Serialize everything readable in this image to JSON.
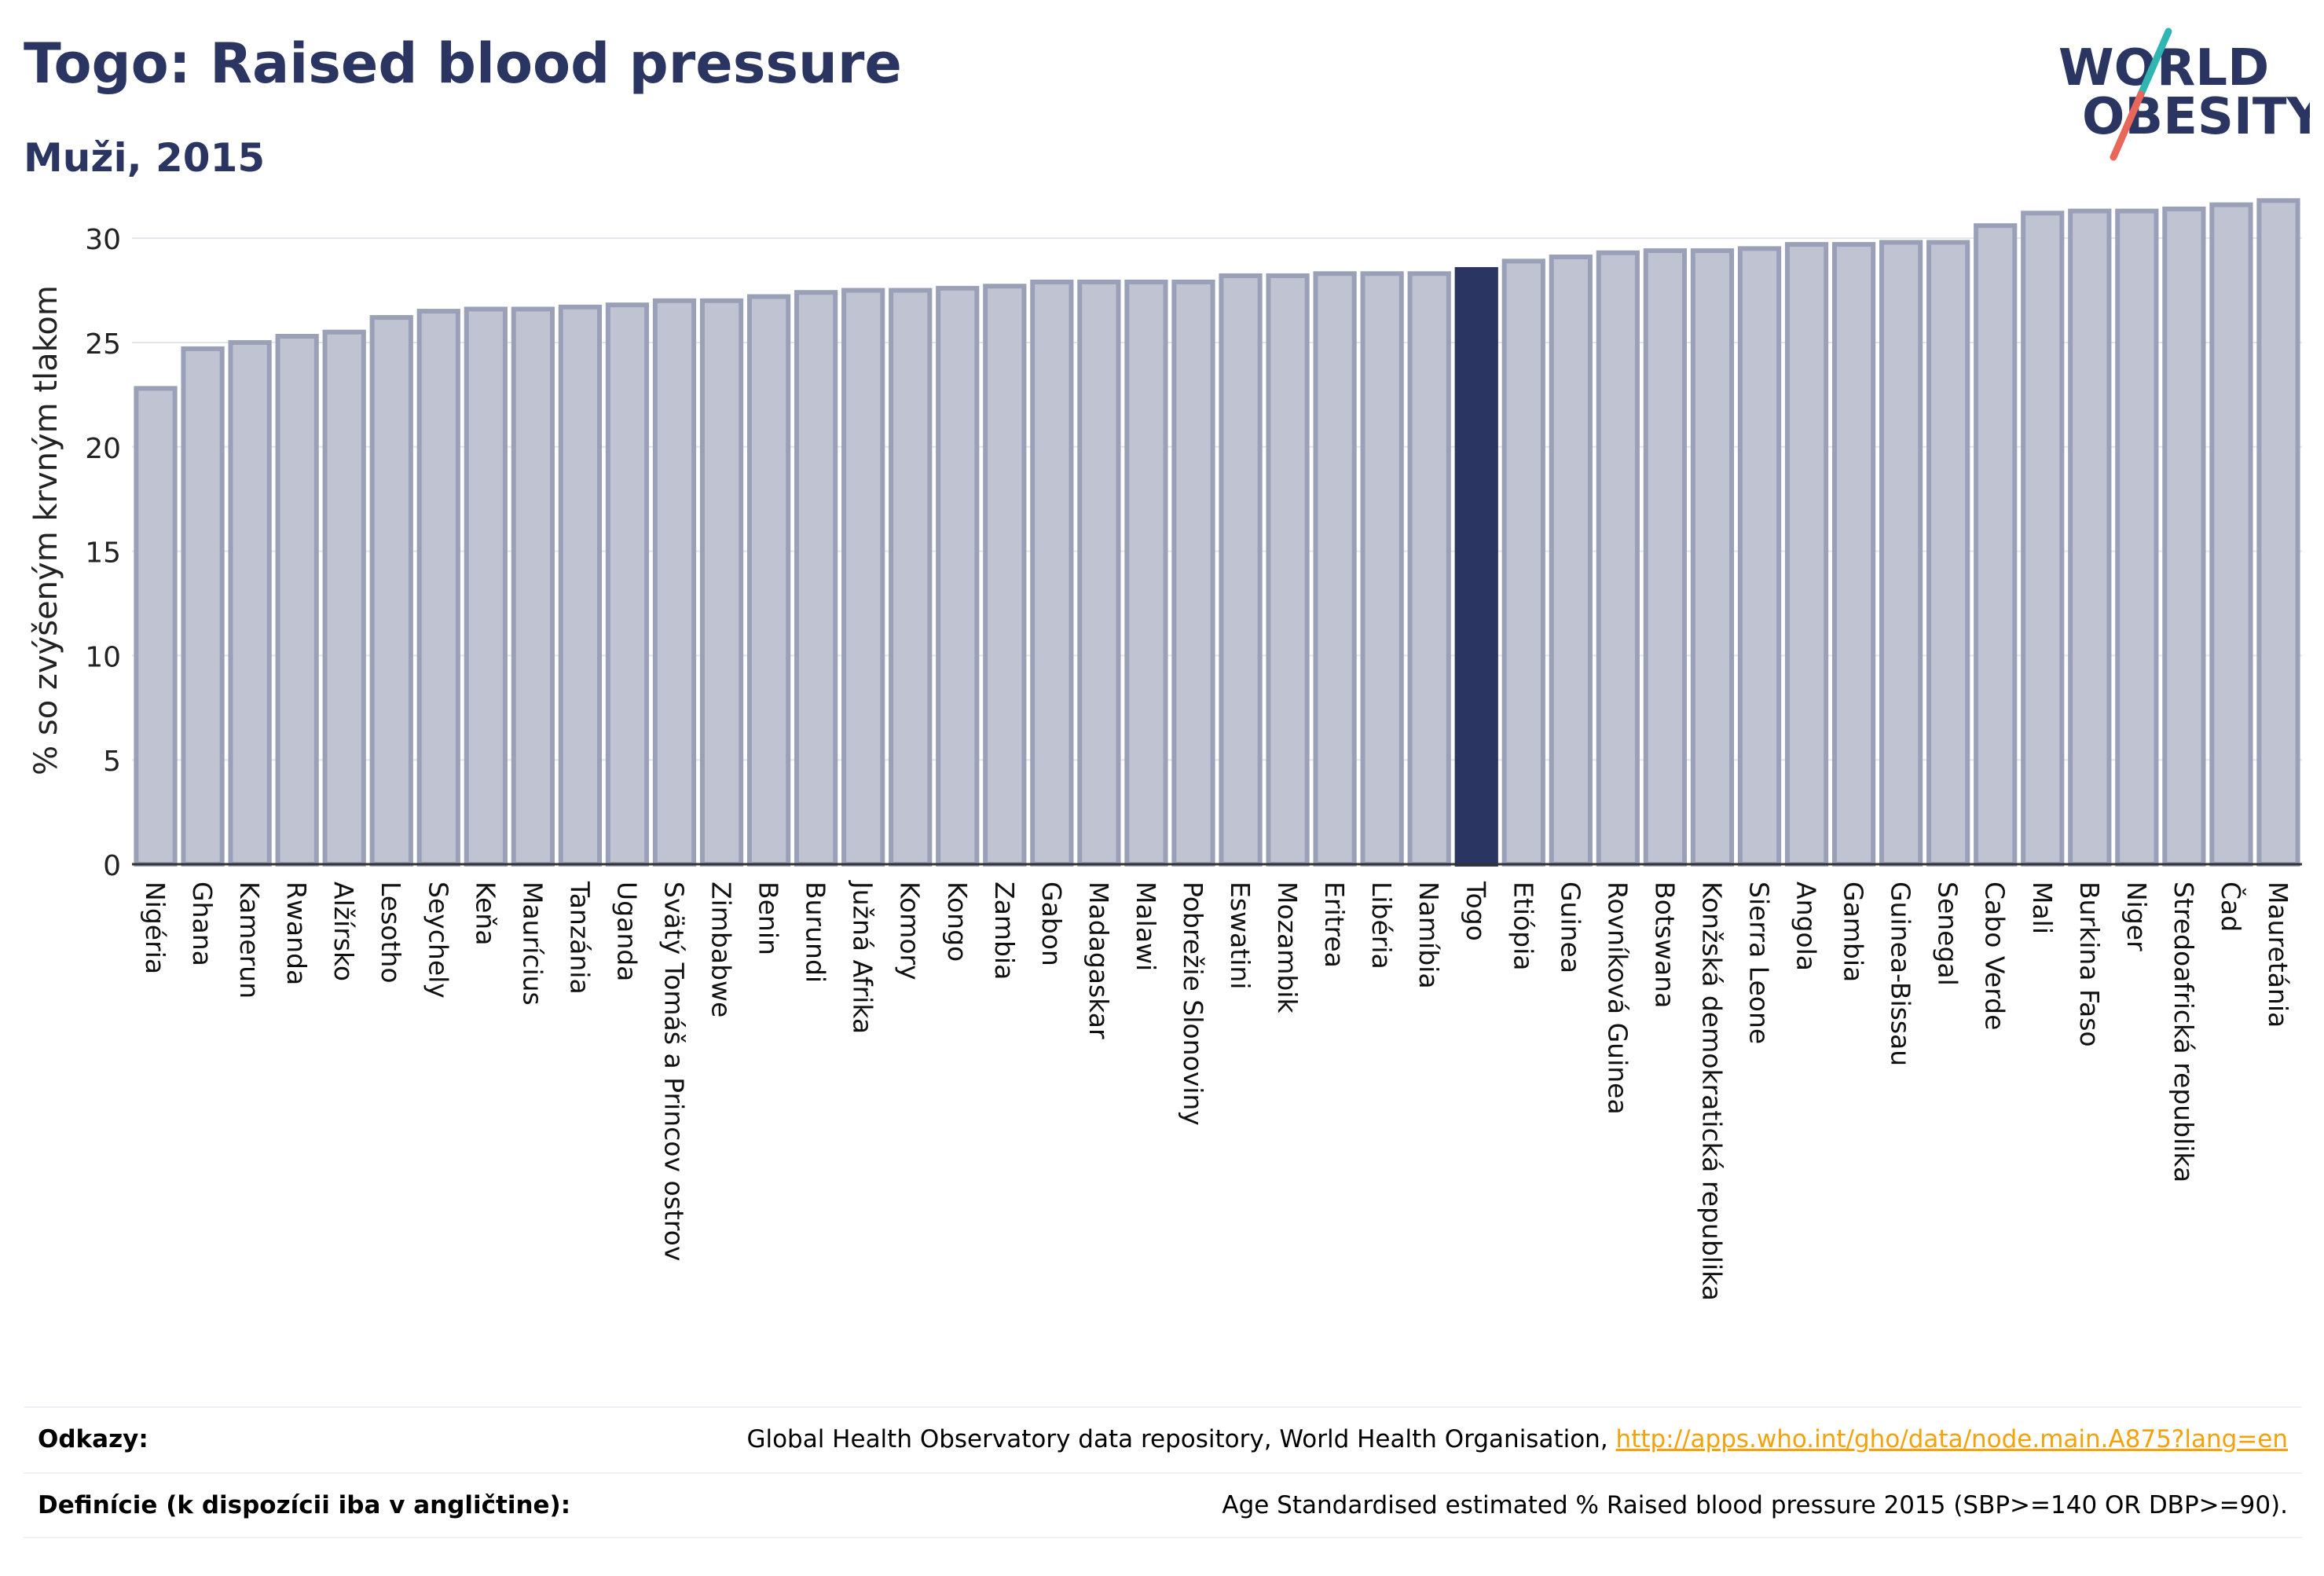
{
  "header": {
    "title": "Togo: Raised blood pressure",
    "subtitle": "Muži, 2015"
  },
  "logo": {
    "line1": "WORLD",
    "line2": "OBESITY",
    "colors": [
      "#2b3562",
      "#2fb6b3",
      "#e8665a"
    ]
  },
  "colors": {
    "bar_fill": "#c0c4d2",
    "bar_stroke": "#9aa0b8",
    "highlight": "#2b3562",
    "grid": "#e3e5ec",
    "axis": "#333333"
  },
  "chart_data": {
    "type": "bar",
    "title": "Togo: Raised blood pressure",
    "subtitle": "Muži, 2015",
    "xlabel": "",
    "ylabel": "% so zvýšeným krvným tlakom",
    "ylim": [
      0,
      32
    ],
    "yticks": [
      0,
      5,
      10,
      15,
      20,
      25,
      30
    ],
    "grid": true,
    "highlight": "Togo",
    "categories": [
      "Nigéria",
      "Ghana",
      "Kamerun",
      "Rwanda",
      "Alžírsko",
      "Lesotho",
      "Seychely",
      "Keňa",
      "Maurícius",
      "Tanzánia",
      "Uganda",
      "Svätý Tomáš a Princov ostrov",
      "Zimbabwe",
      "Benin",
      "Burundi",
      "Južná Afrika",
      "Komory",
      "Kongo",
      "Zambia",
      "Gabon",
      "Madagaskar",
      "Malawi",
      "Pobrežie Slonoviny",
      "Eswatini",
      "Mozambik",
      "Eritrea",
      "Libéria",
      "Namíbia",
      "Togo",
      "Etiópia",
      "Guinea",
      "Rovníková Guinea",
      "Botswana",
      "Konžská demokratická republika",
      "Sierra Leone",
      "Angola",
      "Gambia",
      "Guinea-Bissau",
      "Senegal",
      "Cabo Verde",
      "Mali",
      "Burkina Faso",
      "Niger",
      "Stredoafrická republika",
      "Čad",
      "Mauretánia"
    ],
    "values": [
      22.8,
      24.7,
      25.0,
      25.3,
      25.5,
      26.2,
      26.5,
      26.6,
      26.6,
      26.7,
      26.8,
      27.0,
      27.0,
      27.2,
      27.4,
      27.5,
      27.5,
      27.6,
      27.7,
      27.9,
      27.9,
      27.9,
      27.9,
      28.2,
      28.2,
      28.3,
      28.3,
      28.3,
      28.5,
      28.9,
      29.1,
      29.3,
      29.4,
      29.4,
      29.5,
      29.7,
      29.7,
      29.8,
      29.8,
      30.6,
      31.2,
      31.3,
      31.3,
      31.4,
      31.6,
      31.8
    ]
  },
  "footer": {
    "references_label": "Odkazy:",
    "references_text": "Global Health Observatory data repository, World Health Organisation, ",
    "references_link": "http://apps.who.int/gho/data/node.main.A875?lang=en",
    "definitions_label": "Definície (k dispozícii iba v angličtine):",
    "definitions_text": "Age Standardised estimated % Raised blood pressure 2015 (SBP>=140 OR DBP>=90)."
  }
}
